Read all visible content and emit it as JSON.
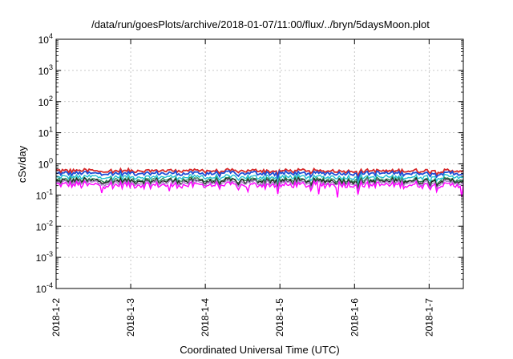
{
  "chart_data": {
    "type": "line",
    "title": "/data/run/goesPlots/archive/2018-01-07/11:00/flux/../bryn/5daysMoon.plot",
    "xlabel": "Coordinated Universal Time (UTC)",
    "ylabel": "cSv/day",
    "y_scale": "log",
    "ylim": [
      0.0001,
      10000
    ],
    "y_ticks": [
      {
        "base": "10",
        "exp": "4",
        "value": 10000
      },
      {
        "base": "10",
        "exp": "3",
        "value": 1000
      },
      {
        "base": "10",
        "exp": "2",
        "value": 100
      },
      {
        "base": "10",
        "exp": "1",
        "value": 10
      },
      {
        "base": "10",
        "exp": "0",
        "value": 1
      },
      {
        "base": "10",
        "exp": "-1",
        "value": 0.1
      },
      {
        "base": "10",
        "exp": "-2",
        "value": 0.01
      },
      {
        "base": "10",
        "exp": "-3",
        "value": 0.001
      },
      {
        "base": "10",
        "exp": "-4",
        "value": 0.0001
      }
    ],
    "x_ticks": [
      "2018-1-2",
      "2018-1-3",
      "2018-1-4",
      "2018-1-5",
      "2018-1-6",
      "2018-1-7"
    ],
    "xlim": [
      "2018-01-02T00:00",
      "2018-01-07T11:00"
    ],
    "grid": true,
    "series": [
      {
        "color": "#d62728",
        "base_value": 0.6
      },
      {
        "color": "#1f4fd6",
        "base_value": 0.5
      },
      {
        "color": "#20c0d0",
        "base_value": 0.38
      },
      {
        "color": "#2e8b57",
        "base_value": 0.31
      },
      {
        "color": "#222222",
        "base_value": 0.28
      },
      {
        "color": "#a080c0",
        "base_value": 0.25
      },
      {
        "color": "#ff00ff",
        "base_value": 0.21
      }
    ]
  }
}
